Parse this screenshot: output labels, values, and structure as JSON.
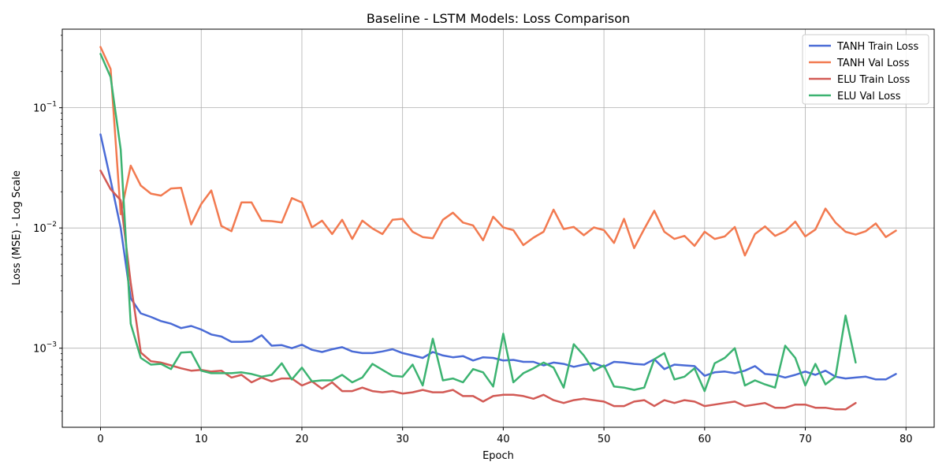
{
  "chart_data": {
    "type": "line",
    "title": "Baseline - LSTM Models: Loss Comparison",
    "xlabel": "Epoch",
    "ylabel": "Loss (MSE) - Log Scale",
    "yscale": "log",
    "xlim": [
      -3.8,
      82.8
    ],
    "ylim": [
      0.00022,
      0.45
    ],
    "x_ticks": [
      0,
      10,
      20,
      30,
      40,
      50,
      60,
      70,
      80
    ],
    "y_ticks": [
      {
        "value": 0.001,
        "base": "10",
        "exp": "−3"
      },
      {
        "value": 0.01,
        "base": "10",
        "exp": "−2"
      },
      {
        "value": 0.1,
        "base": "10",
        "exp": "−1"
      }
    ],
    "grid": true,
    "legend": "top-right",
    "series": [
      {
        "name": "TANH Train Loss",
        "color": "#4a6bd6",
        "values": [
          0.06,
          0.025,
          0.01,
          0.0026,
          0.00195,
          0.00182,
          0.00168,
          0.0016,
          0.00147,
          0.00153,
          0.00143,
          0.0013,
          0.00125,
          0.00113,
          0.00113,
          0.00114,
          0.00128,
          0.00105,
          0.00106,
          0.001,
          0.00107,
          0.00097,
          0.00093,
          0.00098,
          0.00102,
          0.00094,
          0.00091,
          0.00091,
          0.00094,
          0.00098,
          0.00091,
          0.00087,
          0.00083,
          0.00093,
          0.00087,
          0.00084,
          0.00086,
          0.00079,
          0.00084,
          0.00083,
          0.00079,
          0.0008,
          0.00077,
          0.00077,
          0.00072,
          0.00076,
          0.00074,
          0.0007,
          0.00073,
          0.00075,
          0.0007,
          0.00077,
          0.00076,
          0.00074,
          0.00073,
          0.00081,
          0.00067,
          0.00073,
          0.00072,
          0.00071,
          0.00059,
          0.00063,
          0.00064,
          0.00062,
          0.00065,
          0.00071,
          0.00061,
          0.0006,
          0.00057,
          0.0006,
          0.00064,
          0.0006,
          0.00065,
          0.00058,
          0.00056,
          0.00057,
          0.00058,
          0.00055,
          0.00055,
          0.00061
        ]
      },
      {
        "name": "TANH Val Loss",
        "color": "#f27a50",
        "values": [
          0.32,
          0.21,
          0.013,
          0.033,
          0.0225,
          0.0193,
          0.0186,
          0.0213,
          0.0216,
          0.0107,
          0.0158,
          0.0205,
          0.0104,
          0.0094,
          0.0163,
          0.0163,
          0.0115,
          0.0114,
          0.0111,
          0.0177,
          0.0163,
          0.0101,
          0.0115,
          0.0089,
          0.0117,
          0.0081,
          0.0115,
          0.0099,
          0.0089,
          0.0117,
          0.0119,
          0.0093,
          0.0084,
          0.0082,
          0.0117,
          0.0134,
          0.0111,
          0.0105,
          0.0079,
          0.0124,
          0.0101,
          0.0096,
          0.0072,
          0.0083,
          0.0093,
          0.0142,
          0.0098,
          0.0102,
          0.0087,
          0.0101,
          0.0096,
          0.0075,
          0.0119,
          0.0068,
          0.0098,
          0.0139,
          0.0093,
          0.0081,
          0.0086,
          0.0071,
          0.0093,
          0.0081,
          0.0085,
          0.0102,
          0.0059,
          0.0089,
          0.0103,
          0.0086,
          0.0094,
          0.0113,
          0.0085,
          0.0097,
          0.0145,
          0.0111,
          0.0093,
          0.0088,
          0.0094,
          0.0109,
          0.0084,
          0.0095
        ]
      },
      {
        "name": "ELU Train Loss",
        "color": "#d25a55",
        "values": [
          0.03,
          0.021,
          0.017,
          0.0035,
          0.00092,
          0.00078,
          0.00076,
          0.00072,
          0.00068,
          0.00065,
          0.00066,
          0.00064,
          0.00065,
          0.00057,
          0.0006,
          0.00052,
          0.00057,
          0.00053,
          0.00056,
          0.00056,
          0.00049,
          0.00053,
          0.00046,
          0.00052,
          0.00044,
          0.00044,
          0.00047,
          0.00044,
          0.00043,
          0.00044,
          0.00042,
          0.00043,
          0.00045,
          0.00043,
          0.00043,
          0.00045,
          0.0004,
          0.0004,
          0.00036,
          0.0004,
          0.00041,
          0.00041,
          0.0004,
          0.00038,
          0.00041,
          0.00037,
          0.00035,
          0.00037,
          0.00038,
          0.00037,
          0.00036,
          0.00033,
          0.00033,
          0.00036,
          0.00037,
          0.00033,
          0.00037,
          0.00035,
          0.00037,
          0.00036,
          0.00033,
          0.00034,
          0.00035,
          0.00036,
          0.00033,
          0.00034,
          0.00035,
          0.00032,
          0.00032,
          0.00034,
          0.00034,
          0.00032,
          0.00032,
          0.00031,
          0.00031,
          0.00035
        ]
      },
      {
        "name": "ELU Val Loss",
        "color": "#3cb371",
        "values": [
          0.28,
          0.18,
          0.045,
          0.0016,
          0.00083,
          0.00073,
          0.00074,
          0.00067,
          0.00092,
          0.00093,
          0.00065,
          0.00062,
          0.00062,
          0.00062,
          0.00063,
          0.00061,
          0.00058,
          0.0006,
          0.00075,
          0.00055,
          0.00069,
          0.00053,
          0.00054,
          0.00054,
          0.0006,
          0.00052,
          0.00057,
          0.00074,
          0.00066,
          0.00059,
          0.00058,
          0.00073,
          0.00049,
          0.0012,
          0.00054,
          0.00056,
          0.00052,
          0.00067,
          0.00063,
          0.00048,
          0.00132,
          0.00052,
          0.00062,
          0.00068,
          0.00076,
          0.00069,
          0.00047,
          0.00108,
          0.00087,
          0.00065,
          0.00072,
          0.00048,
          0.00047,
          0.00045,
          0.00047,
          0.00081,
          0.00091,
          0.00055,
          0.00058,
          0.00068,
          0.00044,
          0.00075,
          0.00083,
          0.001,
          0.00049,
          0.00054,
          0.0005,
          0.00047,
          0.00105,
          0.00083,
          0.00049,
          0.00074,
          0.0005,
          0.00058,
          0.00187,
          0.00076
        ]
      }
    ]
  }
}
